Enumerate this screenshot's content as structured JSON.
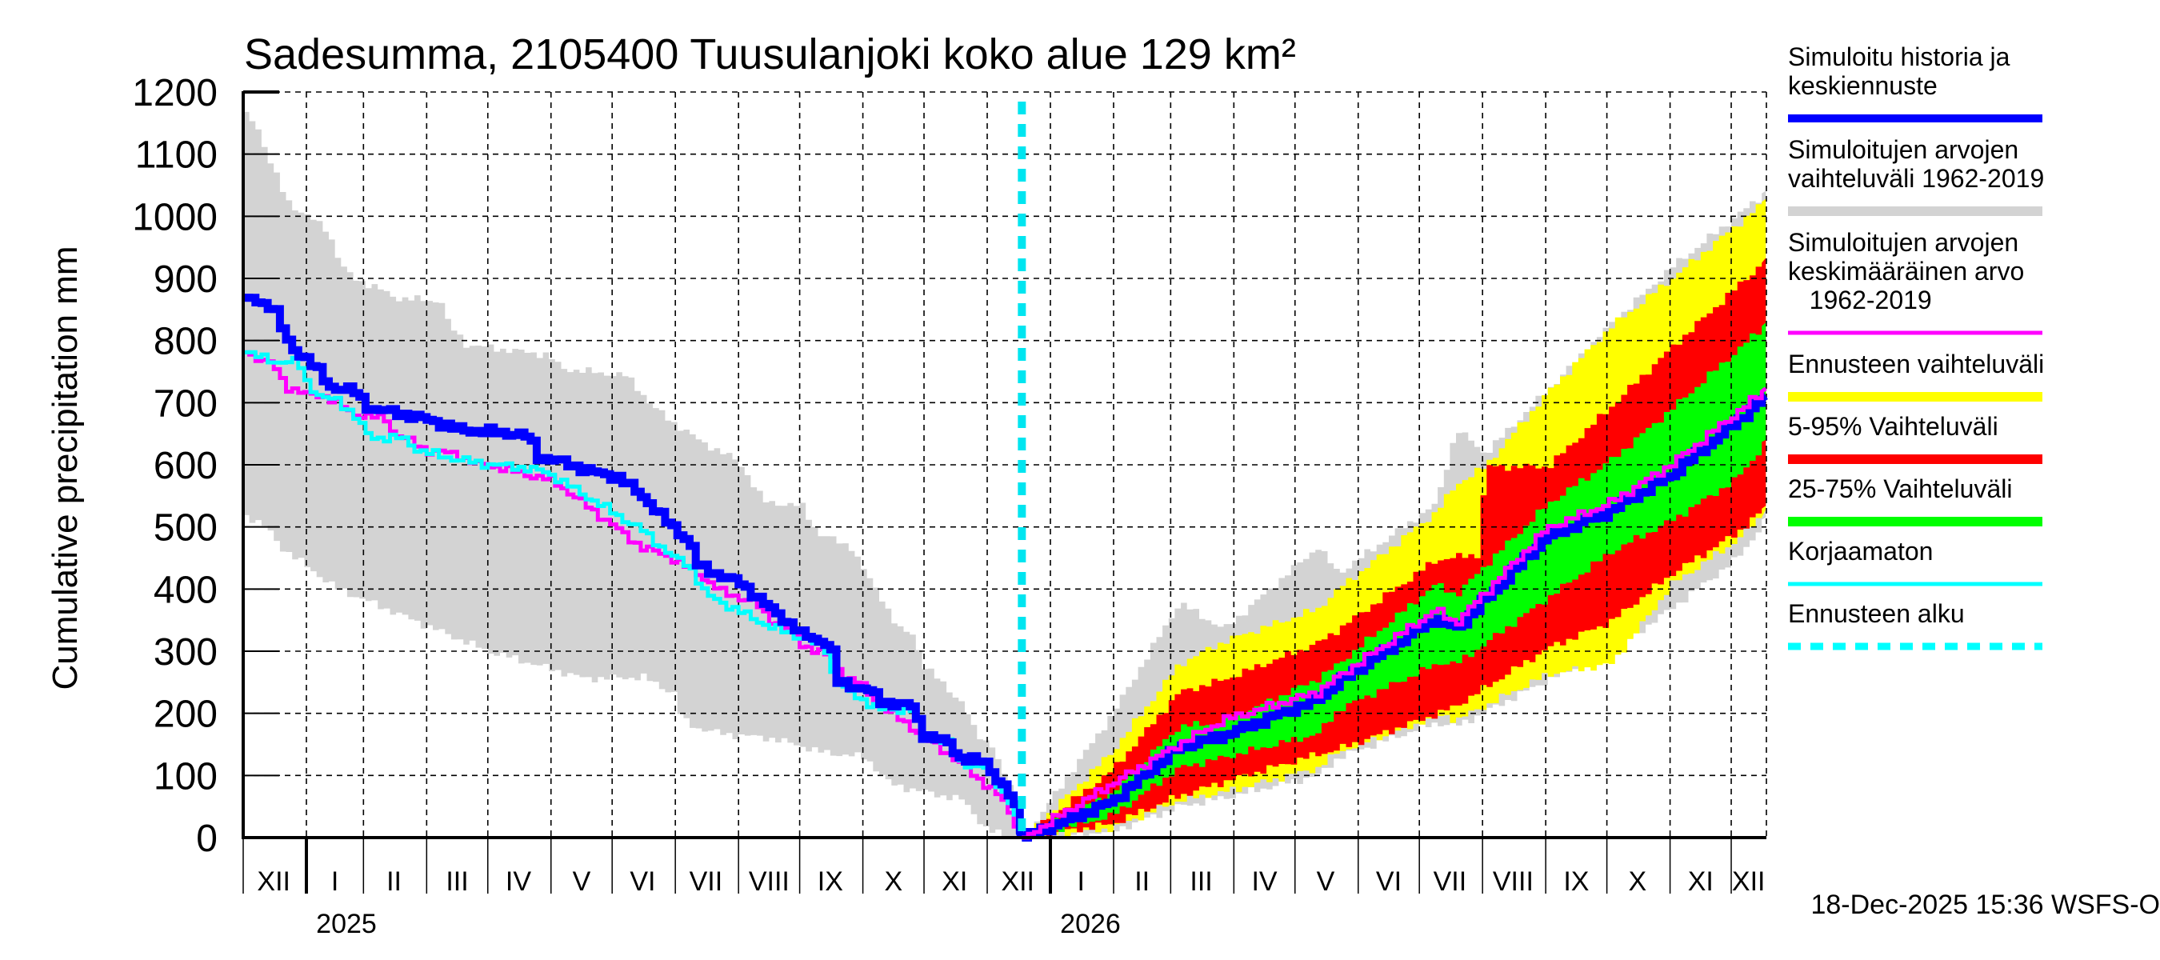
{
  "chart_data": {
    "type": "area",
    "title": "Sadesumma, 2105400 Tuusulanjoki koko alue 129 km²",
    "ylabel": "Cumulative precipitation   mm",
    "xlabel": "",
    "ylim": [
      0,
      1200
    ],
    "yticks": [
      0,
      100,
      200,
      300,
      400,
      500,
      600,
      700,
      800,
      900,
      1000,
      1100,
      1200
    ],
    "grid": true,
    "x_unit": "days since 2024-12-01",
    "xlim": [
      0,
      747
    ],
    "month_ticks": [
      0,
      31,
      59,
      90,
      120,
      151,
      181,
      212,
      243,
      273,
      304,
      334,
      365,
      396,
      427,
      455,
      486,
      516,
      547,
      577,
      608,
      639,
      669,
      700,
      730
    ],
    "month_labels": [
      "XII",
      "I",
      "II",
      "III",
      "IV",
      "V",
      "VI",
      "VII",
      "VIII",
      "IX",
      "X",
      "XI",
      "XII",
      "I",
      "II",
      "III",
      "IV",
      "V",
      "VI",
      "VII",
      "VIII",
      "IX",
      "X",
      "XI",
      "XII"
    ],
    "year_ticks": [
      31,
      396
    ],
    "year_labels": [
      {
        "day": 31,
        "label": "2025"
      },
      {
        "day": 396,
        "label": "2026"
      }
    ],
    "forecast_start_day": 382,
    "timestamp": "18-Dec-2025 15:36 WSFS-O",
    "colors": {
      "history": "#0000ff",
      "sim_range": "#d3d3d3",
      "sim_mean": "#ff00ff",
      "forecast_range": "#ffff00",
      "p5_95": "#ff0000",
      "p25_75": "#00ff00",
      "uncorrected": "#00ffff",
      "forecast_start": "#00e5f0"
    },
    "legend": [
      {
        "label": "Simuloitu historia ja\nkeskiennuste",
        "color": "#0000ff",
        "style": "thick"
      },
      {
        "label": "Simuloitujen arvojen\nvaihteluväli 1962-2019",
        "color": "#d3d3d3",
        "style": "band"
      },
      {
        "label": "Simuloitujen arvojen\nkeskimääräinen arvo\n   1962-2019",
        "color": "#ff00ff",
        "style": "line"
      },
      {
        "label": "Ennusteen vaihteluväli",
        "color": "#ffff00",
        "style": "band"
      },
      {
        "label": "5-95% Vaihteluväli",
        "color": "#ff0000",
        "style": "band"
      },
      {
        "label": "25-75% Vaihteluväli",
        "color": "#00ff00",
        "style": "band"
      },
      {
        "label": "Korjaamaton",
        "color": "#00ffff",
        "style": "thin"
      },
      {
        "label": "Ennusteen alku",
        "color": "#00ffff",
        "style": "dashed"
      }
    ],
    "series": {
      "sim_range_hist_upper": [
        [
          0,
          1168
        ],
        [
          6,
          1142
        ],
        [
          10,
          1103
        ],
        [
          16,
          1056
        ],
        [
          20,
          1026
        ],
        [
          26,
          1009
        ],
        [
          32,
          996
        ],
        [
          40,
          979
        ],
        [
          47,
          919
        ],
        [
          53,
          900
        ],
        [
          65,
          884
        ],
        [
          73,
          869
        ],
        [
          96,
          863
        ],
        [
          98,
          833
        ],
        [
          108,
          794
        ],
        [
          116,
          790
        ],
        [
          148,
          777
        ],
        [
          155,
          755
        ],
        [
          187,
          743
        ],
        [
          195,
          713
        ],
        [
          199,
          695
        ],
        [
          211,
          665
        ],
        [
          222,
          640
        ],
        [
          242,
          605
        ],
        [
          254,
          541
        ],
        [
          273,
          533
        ],
        [
          281,
          489
        ],
        [
          297,
          468
        ],
        [
          304,
          425
        ],
        [
          312,
          386
        ],
        [
          320,
          335
        ],
        [
          328,
          327
        ],
        [
          332,
          279
        ],
        [
          344,
          241
        ],
        [
          352,
          215
        ],
        [
          358,
          167
        ],
        [
          367,
          147
        ],
        [
          371,
          103
        ],
        [
          377,
          77
        ],
        [
          382,
          0
        ]
      ],
      "sim_range_hist_lower": [
        [
          0,
          519
        ],
        [
          10,
          500
        ],
        [
          17,
          468
        ],
        [
          44,
          402
        ],
        [
          85,
          346
        ],
        [
          118,
          301
        ],
        [
          166,
          256
        ],
        [
          195,
          258
        ],
        [
          210,
          232
        ],
        [
          214,
          189
        ],
        [
          222,
          176
        ],
        [
          234,
          167
        ],
        [
          257,
          160
        ],
        [
          273,
          147
        ],
        [
          281,
          138
        ],
        [
          304,
          129
        ],
        [
          316,
          86
        ],
        [
          328,
          77
        ],
        [
          352,
          60
        ],
        [
          364,
          10
        ],
        [
          382,
          0
        ]
      ],
      "history": [
        [
          0,
          869
        ],
        [
          14,
          855
        ],
        [
          18,
          820
        ],
        [
          22,
          790
        ],
        [
          30,
          772
        ],
        [
          37,
          747
        ],
        [
          41,
          726
        ],
        [
          53,
          720
        ],
        [
          61,
          691
        ],
        [
          77,
          682
        ],
        [
          93,
          670
        ],
        [
          104,
          657
        ],
        [
          133,
          650
        ],
        [
          140,
          644
        ],
        [
          143,
          614
        ],
        [
          155,
          605
        ],
        [
          171,
          588
        ],
        [
          183,
          580
        ],
        [
          195,
          550
        ],
        [
          206,
          511
        ],
        [
          218,
          477
        ],
        [
          222,
          438
        ],
        [
          234,
          421
        ],
        [
          244,
          408
        ],
        [
          257,
          370
        ],
        [
          269,
          340
        ],
        [
          273,
          327
        ],
        [
          285,
          314
        ],
        [
          289,
          292
        ],
        [
          291,
          250
        ],
        [
          306,
          237
        ],
        [
          312,
          219
        ],
        [
          328,
          211
        ],
        [
          332,
          167
        ],
        [
          346,
          151
        ],
        [
          350,
          129
        ],
        [
          363,
          121
        ],
        [
          371,
          86
        ],
        [
          377,
          60
        ],
        [
          382,
          0
        ]
      ],
      "sim_mean_hist": [
        [
          0,
          781
        ],
        [
          14,
          760
        ],
        [
          20,
          726
        ],
        [
          30,
          713
        ],
        [
          37,
          713
        ],
        [
          45,
          700
        ],
        [
          53,
          682
        ],
        [
          69,
          674
        ],
        [
          73,
          649
        ],
        [
          77,
          645
        ],
        [
          89,
          623
        ],
        [
          102,
          618
        ],
        [
          114,
          601
        ],
        [
          124,
          597
        ],
        [
          133,
          588
        ],
        [
          151,
          575
        ],
        [
          195,
          466
        ],
        [
          206,
          456
        ],
        [
          222,
          425
        ],
        [
          234,
          395
        ],
        [
          250,
          379
        ],
        [
          257,
          353
        ],
        [
          269,
          327
        ],
        [
          273,
          311
        ],
        [
          289,
          288
        ],
        [
          293,
          256
        ],
        [
          301,
          250
        ],
        [
          312,
          211
        ],
        [
          324,
          185
        ],
        [
          332,
          164
        ],
        [
          344,
          138
        ],
        [
          352,
          116
        ],
        [
          363,
          86
        ],
        [
          371,
          64
        ],
        [
          382,
          0
        ]
      ],
      "uncorrected_hist": [
        [
          0,
          781
        ],
        [
          14,
          766
        ],
        [
          26,
          766
        ],
        [
          30,
          734
        ],
        [
          37,
          708
        ],
        [
          45,
          704
        ],
        [
          53,
          682
        ],
        [
          61,
          644
        ],
        [
          77,
          643
        ],
        [
          85,
          623
        ],
        [
          102,
          610
        ],
        [
          118,
          601
        ],
        [
          133,
          597
        ],
        [
          148,
          588
        ],
        [
          195,
          494
        ],
        [
          210,
          451
        ],
        [
          218,
          438
        ],
        [
          226,
          391
        ],
        [
          234,
          378
        ],
        [
          257,
          340
        ],
        [
          273,
          322
        ],
        [
          285,
          303
        ],
        [
          289,
          254
        ],
        [
          297,
          232
        ],
        [
          312,
          206
        ],
        [
          328,
          206
        ],
        [
          332,
          167
        ],
        [
          346,
          151
        ],
        [
          350,
          121
        ],
        [
          363,
          112
        ],
        [
          375,
          60
        ],
        [
          382,
          0
        ]
      ],
      "sim_range_fc_upper": [
        [
          382,
          0
        ],
        [
          425,
          198
        ],
        [
          458,
          378
        ],
        [
          480,
          335
        ],
        [
          526,
          468
        ],
        [
          536,
          425
        ],
        [
          584,
          537
        ],
        [
          594,
          658
        ],
        [
          608,
          618
        ],
        [
          639,
          721
        ],
        [
          669,
          824
        ],
        [
          700,
          919
        ],
        [
          747,
          1041
        ]
      ],
      "sim_range_fc_lower": [
        [
          382,
          0
        ],
        [
          425,
          10
        ],
        [
          458,
          50
        ],
        [
          480,
          64
        ],
        [
          526,
          100
        ],
        [
          536,
          129
        ],
        [
          584,
          185
        ],
        [
          594,
          179
        ],
        [
          639,
          254
        ],
        [
          670,
          300
        ],
        [
          700,
          370
        ],
        [
          731,
          447
        ],
        [
          747,
          515
        ]
      ],
      "forecast_upper": [
        [
          382,
          0
        ],
        [
          425,
          138
        ],
        [
          458,
          279
        ],
        [
          480,
          316
        ],
        [
          526,
          368
        ],
        [
          536,
          400
        ],
        [
          584,
          524
        ],
        [
          594,
          569
        ],
        [
          608,
          597
        ],
        [
          639,
          717
        ],
        [
          669,
          820
        ],
        [
          700,
          901
        ],
        [
          747,
          1028
        ]
      ],
      "forecast_lower": [
        [
          382,
          0
        ],
        [
          425,
          15
        ],
        [
          458,
          60
        ],
        [
          480,
          73
        ],
        [
          526,
          112
        ],
        [
          536,
          138
        ],
        [
          587,
          198
        ],
        [
          594,
          189
        ],
        [
          639,
          263
        ],
        [
          670,
          279
        ],
        [
          700,
          408
        ],
        [
          731,
          477
        ],
        [
          747,
          528
        ]
      ],
      "p95": [
        [
          382,
          0
        ],
        [
          425,
          108
        ],
        [
          458,
          234
        ],
        [
          480,
          254
        ],
        [
          526,
          313
        ],
        [
          536,
          335
        ],
        [
          584,
          447
        ],
        [
          605,
          456
        ],
        [
          608,
          597
        ],
        [
          639,
          597
        ],
        [
          669,
          691
        ],
        [
          700,
          790
        ],
        [
          747,
          933
        ]
      ],
      "p5": [
        [
          382,
          0
        ],
        [
          425,
          22
        ],
        [
          458,
          67
        ],
        [
          480,
          90
        ],
        [
          526,
          134
        ],
        [
          536,
          142
        ],
        [
          587,
          202
        ],
        [
          594,
          212
        ],
        [
          639,
          305
        ],
        [
          670,
          348
        ],
        [
          700,
          425
        ],
        [
          731,
          489
        ],
        [
          747,
          534
        ]
      ],
      "p75": [
        [
          382,
          0
        ],
        [
          425,
          72
        ],
        [
          458,
          179
        ],
        [
          480,
          185
        ],
        [
          526,
          256
        ],
        [
          536,
          279
        ],
        [
          584,
          408
        ],
        [
          594,
          390
        ],
        [
          608,
          438
        ],
        [
          639,
          537
        ],
        [
          669,
          605
        ],
        [
          700,
          691
        ],
        [
          747,
          829
        ]
      ],
      "p25": [
        [
          382,
          0
        ],
        [
          425,
          35
        ],
        [
          458,
          112
        ],
        [
          480,
          129
        ],
        [
          526,
          167
        ],
        [
          536,
          206
        ],
        [
          587,
          283
        ],
        [
          594,
          279
        ],
        [
          639,
          386
        ],
        [
          670,
          460
        ],
        [
          700,
          511
        ],
        [
          731,
          576
        ],
        [
          747,
          640
        ]
      ],
      "forecast_median": [
        [
          382,
          0
        ],
        [
          425,
          57
        ],
        [
          458,
          145
        ],
        [
          480,
          164
        ],
        [
          526,
          222
        ],
        [
          536,
          249
        ],
        [
          584,
          353
        ],
        [
          594,
          335
        ],
        [
          614,
          401
        ],
        [
          639,
          485
        ],
        [
          669,
          524
        ],
        [
          700,
          584
        ],
        [
          747,
          711
        ]
      ],
      "sim_mean_fc": [
        [
          382,
          0
        ],
        [
          425,
          86
        ],
        [
          458,
          150
        ],
        [
          480,
          189
        ],
        [
          526,
          234
        ],
        [
          536,
          258
        ],
        [
          584,
          366
        ],
        [
          594,
          345
        ],
        [
          639,
          498
        ],
        [
          669,
          537
        ],
        [
          700,
          601
        ],
        [
          747,
          723
        ]
      ]
    }
  }
}
